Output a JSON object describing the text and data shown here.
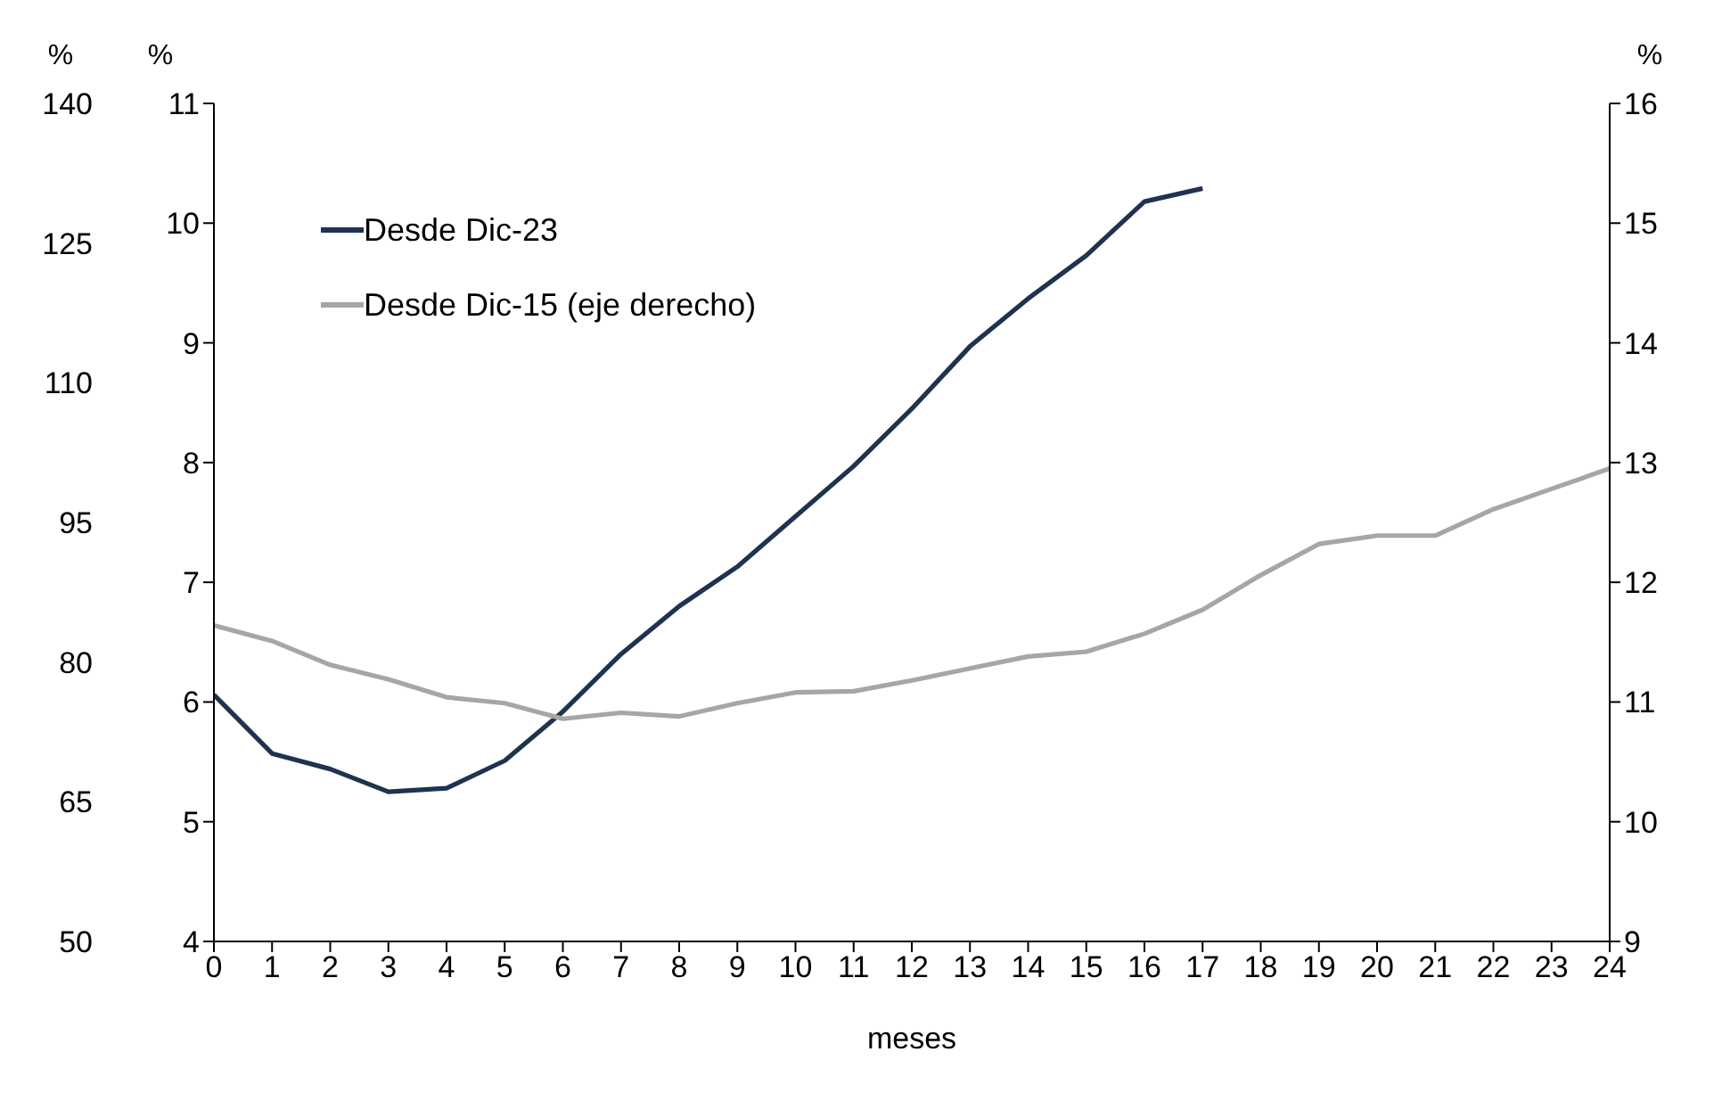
{
  "chart_data": {
    "type": "line",
    "x": [
      0,
      1,
      2,
      3,
      4,
      5,
      6,
      7,
      8,
      9,
      10,
      11,
      12,
      13,
      14,
      15,
      16,
      17,
      18,
      19,
      20,
      21,
      22,
      23,
      24
    ],
    "xlim": [
      0,
      24
    ],
    "xticks": [
      0,
      1,
      2,
      3,
      4,
      5,
      6,
      7,
      8,
      9,
      10,
      11,
      12,
      13,
      14,
      15,
      16,
      17,
      18,
      19,
      20,
      21,
      22,
      23,
      24
    ],
    "xlabel": "meses",
    "ylabel": "%",
    "y2label": "%",
    "y3label": "%",
    "series": [
      {
        "name": "Desde Dic-23",
        "color": "#1f3350",
        "values": [
          6.06,
          5.57,
          5.44,
          5.25,
          5.28,
          5.51,
          5.92,
          6.4,
          6.8,
          7.13,
          7.55,
          7.97,
          8.45,
          8.97,
          9.37,
          9.73,
          10.18,
          10.29,
          null,
          null,
          null,
          null,
          null,
          null,
          null
        ]
      },
      {
        "name": "Desde Dic-15 (eje derecho)",
        "color": "#a6a6a6",
        "axis": "y2",
        "values": [
          11.64,
          11.51,
          11.31,
          11.19,
          11.04,
          10.99,
          10.86,
          10.91,
          10.88,
          10.99,
          11.08,
          11.09,
          11.18,
          11.28,
          11.38,
          11.42,
          11.57,
          11.77,
          12.06,
          12.32,
          12.39,
          12.39,
          12.61,
          12.78,
          12.95
        ]
      }
    ],
    "ylim": [
      4,
      11
    ],
    "yticks": [
      4,
      5,
      6,
      7,
      8,
      9,
      10,
      11
    ],
    "y2lim": [
      9,
      16
    ],
    "y2ticks": [
      9,
      10,
      11,
      12,
      13,
      14,
      15,
      16
    ],
    "y3lim": [
      50,
      140
    ],
    "y3ticks": [
      50,
      65,
      80,
      95,
      110,
      125,
      140
    ],
    "grid": false,
    "legend": "top left",
    "marker": "none",
    "line_style": "solid"
  }
}
